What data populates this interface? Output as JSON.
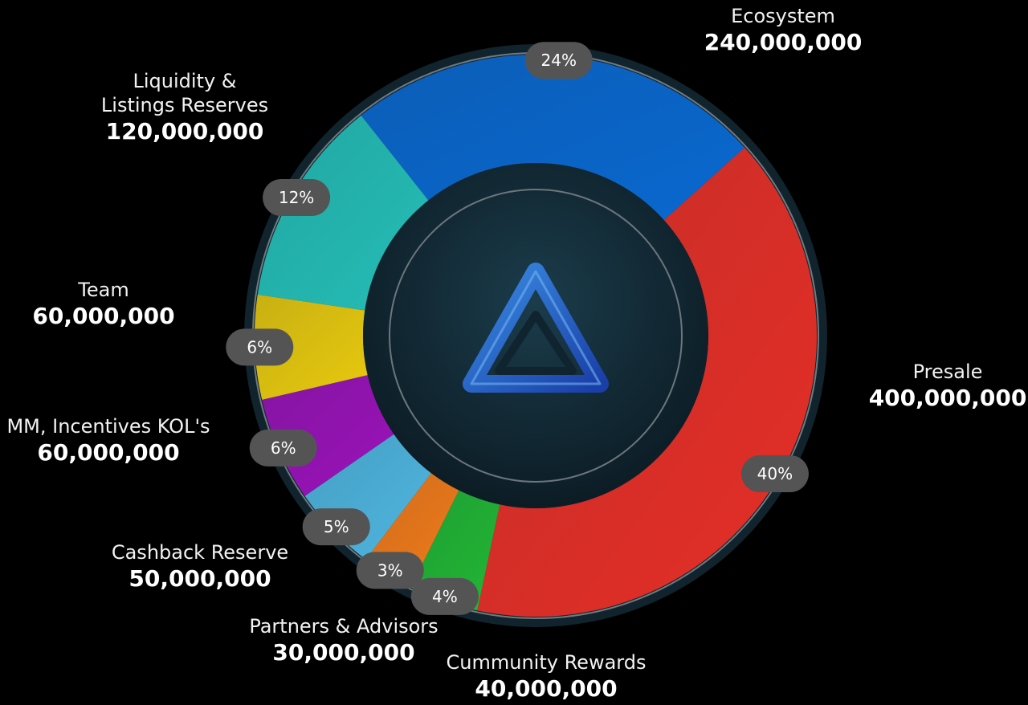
{
  "chart_data": {
    "type": "donut",
    "segments": [
      {
        "label": "Presale",
        "value": 400000000,
        "value_text": "400,000,000",
        "percent_text": "40%",
        "color": "#e52f27"
      },
      {
        "label": "Cummunity Rewards",
        "value": 40000000,
        "value_text": "40,000,000",
        "percent_text": "4%",
        "color": "#22b535"
      },
      {
        "label": "Partners & Advisors",
        "value": 30000000,
        "value_text": "30,000,000",
        "percent_text": "3%",
        "color": "#f07a1a"
      },
      {
        "label": "Cashback Reserve",
        "value": 50000000,
        "value_text": "50,000,000",
        "percent_text": "5%",
        "color": "#4fb5df"
      },
      {
        "label": "MM, Incentives KOL's",
        "value": 60000000,
        "value_text": "60,000,000",
        "percent_text": "6%",
        "color": "#9a12b8"
      },
      {
        "label": "Team",
        "value": 60000000,
        "value_text": "60,000,000",
        "percent_text": "6%",
        "color": "#e8c90e"
      },
      {
        "label": "Liquidity & Listings Reserves",
        "label_lines": [
          "Liquidity &",
          "Listings Reserves"
        ],
        "value": 120000000,
        "value_text": "120,000,000",
        "percent_text": "12%",
        "color": "#25bdb6"
      },
      {
        "label": "Ecosystem",
        "value": 240000000,
        "value_text": "240,000,000",
        "percent_text": "24%",
        "color": "#0a68cf"
      }
    ],
    "colors": {
      "background": "#000000",
      "ring": "#11232c",
      "center": "#102430",
      "badge": "#545454"
    },
    "center_icon": "triangle-logo-icon"
  }
}
